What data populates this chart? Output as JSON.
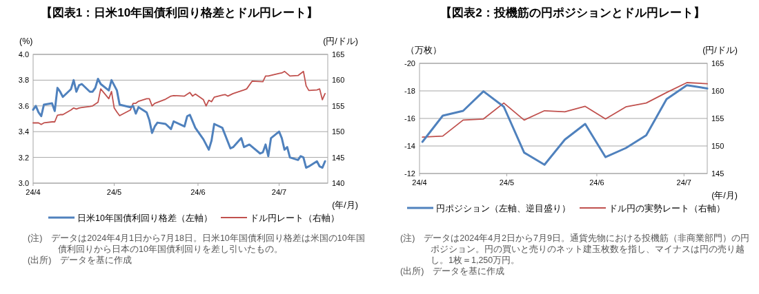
{
  "chart_data": [
    {
      "type": "line",
      "title": "【図表1：日米10年国債利回り格差とドル円レート】",
      "xlabel": "(年/月)",
      "ylabel": "(%)",
      "y2label": "(円/ドル)",
      "xlim": [
        "2024-04-01",
        "2024-07-19"
      ],
      "xticks": [
        {
          "value": "2024-04-01",
          "label": "24/4"
        },
        {
          "value": "2024-05-01",
          "label": "24/5"
        },
        {
          "value": "2024-06-01",
          "label": "24/6"
        },
        {
          "value": "2024-07-01",
          "label": "24/7"
        }
      ],
      "ylim": [
        3.0,
        4.0
      ],
      "yticks": [
        {
          "value": 3.0,
          "label": "3.0"
        },
        {
          "value": 3.2,
          "label": "3.2"
        },
        {
          "value": 3.4,
          "label": "3.4"
        },
        {
          "value": 3.6,
          "label": "3.6"
        },
        {
          "value": 3.8,
          "label": "3.8"
        },
        {
          "value": 4.0,
          "label": "4.0"
        }
      ],
      "y2lim": [
        140,
        165
      ],
      "y2ticks": [
        140,
        145,
        150,
        155,
        160,
        165
      ],
      "grid": "y",
      "legend": "bottom",
      "series": [
        {
          "name": "日米10年国債利回り格差（左軸）",
          "color": "#4f81bd",
          "axis": "y",
          "x": [
            "2024-04-01",
            "2024-04-02",
            "2024-04-03",
            "2024-04-04",
            "2024-04-05",
            "2024-04-08",
            "2024-04-09",
            "2024-04-10",
            "2024-04-11",
            "2024-04-12",
            "2024-04-15",
            "2024-04-16",
            "2024-04-17",
            "2024-04-18",
            "2024-04-19",
            "2024-04-22",
            "2024-04-23",
            "2024-04-24",
            "2024-04-25",
            "2024-04-26",
            "2024-04-29",
            "2024-04-30",
            "2024-05-02",
            "2024-05-03",
            "2024-05-07",
            "2024-05-08",
            "2024-05-09",
            "2024-05-10",
            "2024-05-13",
            "2024-05-14",
            "2024-05-15",
            "2024-05-16",
            "2024-05-17",
            "2024-05-20",
            "2024-05-22",
            "2024-05-23",
            "2024-05-27",
            "2024-05-28",
            "2024-05-29",
            "2024-05-31",
            "2024-06-03",
            "2024-06-05",
            "2024-06-06",
            "2024-06-07",
            "2024-06-10",
            "2024-06-13",
            "2024-06-14",
            "2024-06-17",
            "2024-06-18",
            "2024-06-20",
            "2024-06-24",
            "2024-06-25",
            "2024-06-26",
            "2024-06-27",
            "2024-06-28",
            "2024-07-01",
            "2024-07-02",
            "2024-07-03",
            "2024-07-04",
            "2024-07-05",
            "2024-07-08",
            "2024-07-09",
            "2024-07-10",
            "2024-07-11",
            "2024-07-12",
            "2024-07-15",
            "2024-07-16",
            "2024-07-17",
            "2024-07-18"
          ],
          "values": [
            3.57,
            3.6,
            3.55,
            3.52,
            3.61,
            3.62,
            3.56,
            3.74,
            3.71,
            3.67,
            3.73,
            3.8,
            3.71,
            3.76,
            3.77,
            3.71,
            3.71,
            3.74,
            3.81,
            3.77,
            3.72,
            3.8,
            3.72,
            3.61,
            3.59,
            3.6,
            3.54,
            3.59,
            3.55,
            3.49,
            3.39,
            3.44,
            3.47,
            3.46,
            3.42,
            3.48,
            3.44,
            3.52,
            3.53,
            3.43,
            3.34,
            3.26,
            3.33,
            3.46,
            3.43,
            3.27,
            3.28,
            3.35,
            3.28,
            3.3,
            3.23,
            3.24,
            3.3,
            3.21,
            3.35,
            3.4,
            3.35,
            3.26,
            3.28,
            3.2,
            3.18,
            3.21,
            3.2,
            3.12,
            3.13,
            3.17,
            3.13,
            3.12,
            3.17
          ]
        },
        {
          "name": "ドル円レート（右軸）",
          "color": "#c0504d",
          "axis": "y2",
          "x": [
            "2024-04-01",
            "2024-04-02",
            "2024-04-03",
            "2024-04-04",
            "2024-04-05",
            "2024-04-08",
            "2024-04-09",
            "2024-04-10",
            "2024-04-11",
            "2024-04-12",
            "2024-04-15",
            "2024-04-16",
            "2024-04-17",
            "2024-04-18",
            "2024-04-19",
            "2024-04-22",
            "2024-04-23",
            "2024-04-25",
            "2024-04-26",
            "2024-04-29",
            "2024-04-30",
            "2024-05-01",
            "2024-05-02",
            "2024-05-03",
            "2024-05-07",
            "2024-05-08",
            "2024-05-09",
            "2024-05-10",
            "2024-05-13",
            "2024-05-14",
            "2024-05-15",
            "2024-05-16",
            "2024-05-20",
            "2024-05-22",
            "2024-05-23",
            "2024-05-27",
            "2024-05-29",
            "2024-05-30",
            "2024-05-31",
            "2024-06-03",
            "2024-06-04",
            "2024-06-05",
            "2024-06-06",
            "2024-06-07",
            "2024-06-10",
            "2024-06-11",
            "2024-06-12",
            "2024-06-14",
            "2024-06-18",
            "2024-06-19",
            "2024-06-21",
            "2024-06-25",
            "2024-06-26",
            "2024-06-27",
            "2024-07-01",
            "2024-07-02",
            "2024-07-03",
            "2024-07-05",
            "2024-07-08",
            "2024-07-10",
            "2024-07-11",
            "2024-07-12",
            "2024-07-15",
            "2024-07-16",
            "2024-07-17",
            "2024-07-18"
          ],
          "values": [
            151.7,
            151.7,
            151.7,
            151.4,
            151.7,
            151.9,
            151.9,
            153.2,
            153.3,
            153.3,
            154.2,
            154.6,
            154.4,
            154.6,
            154.7,
            154.9,
            155.0,
            155.7,
            158.3,
            156.4,
            157.8,
            154.6,
            153.8,
            153.1,
            154.2,
            155.5,
            155.5,
            155.9,
            156.4,
            156.4,
            155.0,
            155.5,
            156.3,
            156.9,
            157.0,
            156.9,
            157.6,
            156.9,
            157.3,
            156.2,
            155.0,
            156.1,
            155.8,
            156.7,
            157.1,
            157.2,
            156.9,
            157.4,
            158.1,
            158.3,
            159.8,
            159.7,
            160.8,
            160.8,
            161.3,
            161.4,
            161.7,
            160.8,
            160.9,
            161.7,
            158.9,
            158.0,
            158.1,
            158.3,
            156.2,
            157.4
          ]
        }
      ],
      "annotations": [
        "(注)　データは2024年4月1日から7月18日。日米10年国債利回り格差は米国の10年国債利回りから日本の10年国債利回りを差し引いたもの。",
        "(出所)　データを基に作成"
      ]
    },
    {
      "type": "line",
      "title": "【図表2：投機筋の円ポジションとドル円レート】",
      "xlabel": "(年/月)",
      "ylabel": "（万枚）",
      "y2label": "(円/ドル)",
      "xlim": [
        "2024-04-01",
        "2024-07-09"
      ],
      "xticks": [
        {
          "value": "2024-04-01",
          "label": "24/4"
        },
        {
          "value": "2024-05-01",
          "label": "24/5"
        },
        {
          "value": "2024-06-01",
          "label": "24/6"
        },
        {
          "value": "2024-07-01",
          "label": "24/7"
        }
      ],
      "ylim": [
        -12,
        -20
      ],
      "yticks": [
        -12,
        -14,
        -16,
        -18,
        -20
      ],
      "y2lim": [
        145,
        165
      ],
      "y2ticks": [
        145,
        150,
        155,
        160,
        165
      ],
      "grid": "y",
      "legend": "bottom",
      "series": [
        {
          "name": "円ポジション（左軸、逆目盛り）",
          "color": "#4f81bd",
          "axis": "y",
          "x": [
            "2024-04-02",
            "2024-04-09",
            "2024-04-16",
            "2024-04-23",
            "2024-04-30",
            "2024-05-07",
            "2024-05-14",
            "2024-05-21",
            "2024-05-28",
            "2024-06-04",
            "2024-06-11",
            "2024-06-18",
            "2024-06-25",
            "2024-07-02",
            "2024-07-09"
          ],
          "values": [
            -14.3,
            -16.2,
            -16.55,
            -17.97,
            -16.85,
            -13.52,
            -12.64,
            -14.46,
            -15.6,
            -13.19,
            -13.85,
            -14.77,
            -17.4,
            -18.41,
            -18.18
          ]
        },
        {
          "name": "ドル円の実勢レート（右軸）",
          "color": "#c0504d",
          "axis": "y2",
          "x": [
            "2024-04-02",
            "2024-04-09",
            "2024-04-16",
            "2024-04-23",
            "2024-04-30",
            "2024-05-07",
            "2024-05-14",
            "2024-05-21",
            "2024-05-28",
            "2024-06-04",
            "2024-06-11",
            "2024-06-18",
            "2024-06-25",
            "2024-07-02",
            "2024-07-09"
          ],
          "values": [
            151.6,
            151.8,
            154.7,
            154.9,
            157.8,
            154.7,
            156.4,
            156.2,
            157.2,
            154.9,
            157.1,
            157.8,
            159.7,
            161.5,
            161.3
          ]
        }
      ],
      "annotations": [
        "(注)　データは2024年4月2日から7月9日。通貨先物における投機筋（非商業部門）の円ポジション。円の買いと売りのネット建玉枚数を指し、マイナスは円の売り越し。1枚＝1,250万円。",
        "(出所)　データを基に作成"
      ]
    }
  ]
}
